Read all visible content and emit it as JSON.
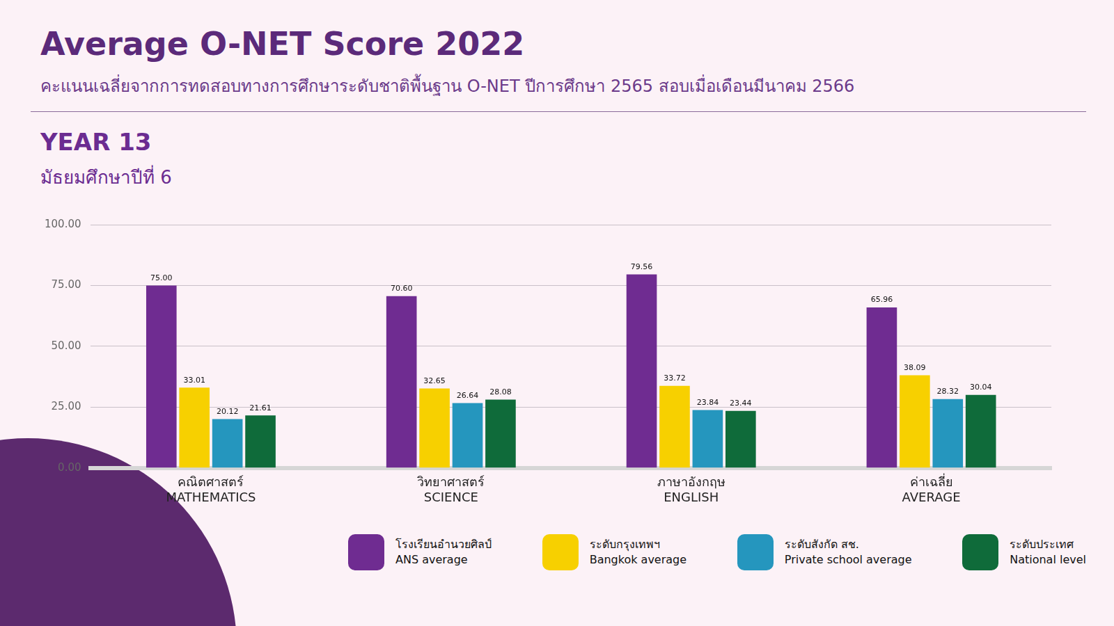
{
  "chart_data": {
    "type": "bar",
    "title": "Average O-NET Score 2022",
    "subtitle": "คะแนนเฉลี่ยจากการทดสอบทางการศึกษาระดับชาติพื้นฐาน O-NET ปีการศึกษา 2565 สอบเมื่อเดือนมีนาคม 2566",
    "annotations": [
      "YEAR 13",
      "มัธยมศึกษาปีที่ 6"
    ],
    "categories": [
      [
        "คณิตศาสตร์",
        "MATHEMATICS"
      ],
      [
        "วิทยาศาสตร์",
        "SCIENCE"
      ],
      [
        "ภาษาอังกฤษ",
        "ENGLISH"
      ],
      [
        "ค่าเฉลี่ย",
        "AVERAGE"
      ]
    ],
    "series": [
      {
        "name": "โรงเรียนอำนวยศิลป์\nANS average",
        "color": "#6f2c91",
        "values": [
          75,
          70.6,
          79.56,
          65.96
        ],
        "value_labels": [
          "75.00",
          "70.60",
          "79.56",
          "65.96"
        ]
      },
      {
        "name": "ระดับกรุงเทพฯ\nBangkok average",
        "color": "#f7d000",
        "values": [
          33.01,
          32.65,
          33.72,
          38.09
        ],
        "value_labels": [
          "33.01",
          "32.65",
          "33.72",
          "38.09"
        ]
      },
      {
        "name": "ระดับสังกัด สช.\nPrivate school average",
        "color": "#2596be",
        "values": [
          20.12,
          26.64,
          23.84,
          28.32
        ],
        "value_labels": [
          "20.12",
          "26.64",
          "23.84",
          "28.32"
        ]
      },
      {
        "name": "ระดับประเทศ\nNational level",
        "color": "#0f6b3a",
        "values": [
          21.61,
          28.08,
          23.44,
          30.04
        ],
        "value_labels": [
          "21.61",
          "28.08",
          "23.44",
          "30.04"
        ]
      }
    ],
    "ylim": [
      0,
      100
    ],
    "yticks": [
      {
        "value": 0,
        "label": "0.00"
      },
      {
        "value": 25,
        "label": "25.00"
      },
      {
        "value": 50,
        "label": "50.00"
      },
      {
        "value": 75,
        "label": "75.00"
      },
      {
        "value": 100,
        "label": "100.00"
      }
    ],
    "grid": true,
    "legend": "bottom",
    "data_labels": true
  }
}
